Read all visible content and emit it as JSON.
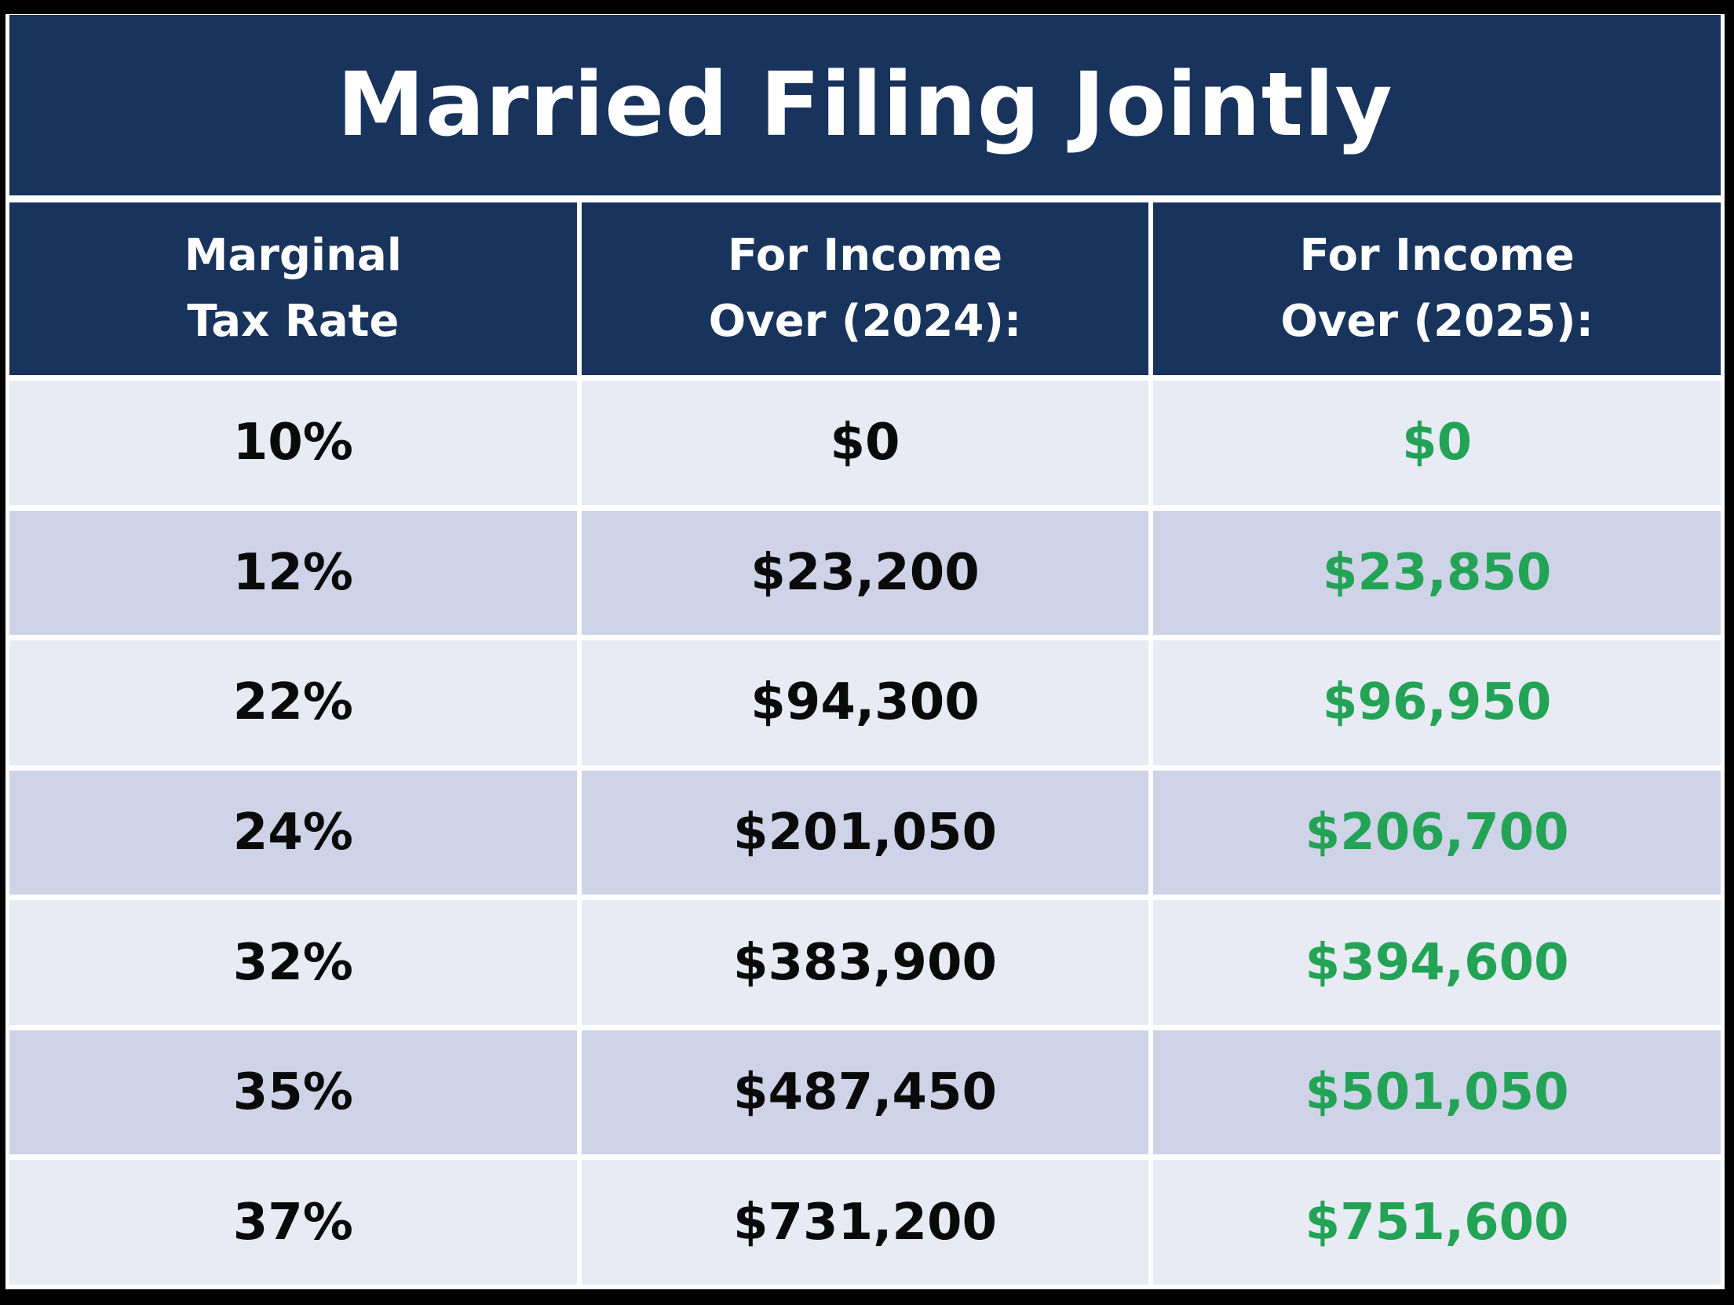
{
  "title": "Married Filing Jointly",
  "header": {
    "col1": {
      "line1": "Marginal",
      "line2": "Tax Rate"
    },
    "col2": {
      "line1": "For Income",
      "line2": "Over (2024):"
    },
    "col3": {
      "line1": "For Income",
      "line2": "Over (2025):"
    }
  },
  "colors": {
    "header_navy": "#18335c",
    "row_light": "#e8eaf4",
    "row_dark": "#cfd3e8",
    "value_2025_green": "#22a355",
    "value_text": "#0a0a0a",
    "divider_white": "#ffffff",
    "outer_border_black": "#000000"
  },
  "chart_data": {
    "type": "table",
    "title": "Married Filing Jointly",
    "columns": [
      "Marginal Tax Rate",
      "For Income Over (2024):",
      "For Income Over (2025):"
    ],
    "rows": [
      [
        "10%",
        "$0",
        "$0"
      ],
      [
        "12%",
        "$23,200",
        "$23,850"
      ],
      [
        "22%",
        "$94,300",
        "$96,950"
      ],
      [
        "24%",
        "$201,050",
        "$206,700"
      ],
      [
        "32%",
        "$383,900",
        "$394,600"
      ],
      [
        "35%",
        "$487,450",
        "$501,050"
      ],
      [
        "37%",
        "$731,200",
        "$751,600"
      ]
    ]
  }
}
